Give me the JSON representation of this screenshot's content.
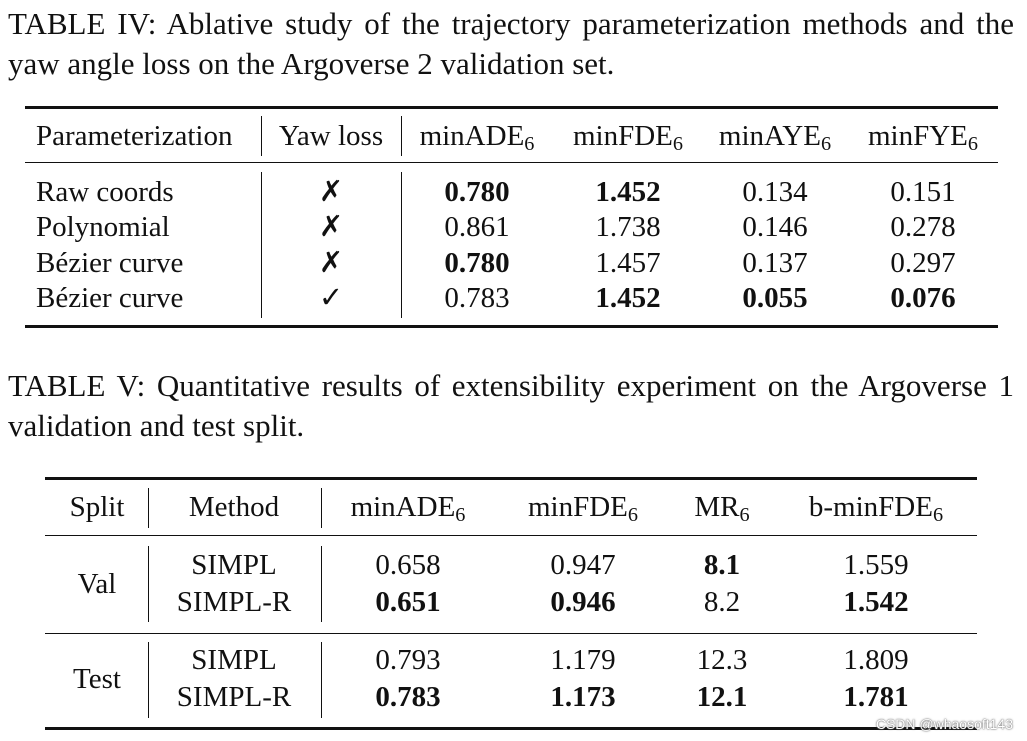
{
  "table4": {
    "caption": "TABLE IV: Ablative study of the trajectory parameterization methods and the yaw angle loss on the Argoverse 2 validation set.",
    "headers": {
      "param": "Parameterization",
      "yaw": "Yaw loss",
      "minade": "minADE",
      "minfde": "minFDE",
      "minaye": "minAYE",
      "minfye": "minFYE",
      "k": "6"
    },
    "rows": [
      {
        "param": "Raw coords",
        "yaw": "✗",
        "minade": "0.780",
        "minfde": "1.452",
        "minaye": "0.134",
        "minfye": "0.151"
      },
      {
        "param": "Polynomial",
        "yaw": "✗",
        "minade": "0.861",
        "minfde": "1.738",
        "minaye": "0.146",
        "minfye": "0.278"
      },
      {
        "param": "Bézier curve",
        "yaw": "✗",
        "minade": "0.780",
        "minfde": "1.457",
        "minaye": "0.137",
        "minfye": "0.297"
      },
      {
        "param": "Bézier curve",
        "yaw": "✓",
        "minade": "0.783",
        "minfde": "1.452",
        "minaye": "0.055",
        "minfye": "0.076"
      }
    ]
  },
  "table5": {
    "caption": "TABLE V: Quantitative results of extensibility experiment on the Argoverse 1 validation and test split.",
    "headers": {
      "split": "Split",
      "method": "Method",
      "minade": "minADE",
      "minfde": "minFDE",
      "mr": "MR",
      "bminfde": "b-minFDE",
      "k": "6"
    },
    "groups": [
      {
        "split": "Val",
        "rows": [
          {
            "method": "SIMPL",
            "minade": "0.658",
            "minfde": "0.947",
            "mr": "8.1",
            "bminfde": "1.559"
          },
          {
            "method": "SIMPL-R",
            "minade": "0.651",
            "minfde": "0.946",
            "mr": "8.2",
            "bminfde": "1.542"
          }
        ]
      },
      {
        "split": "Test",
        "rows": [
          {
            "method": "SIMPL",
            "minade": "0.793",
            "minfde": "1.179",
            "mr": "12.3",
            "bminfde": "1.809"
          },
          {
            "method": "SIMPL-R",
            "minade": "0.783",
            "minfde": "1.173",
            "mr": "12.1",
            "bminfde": "1.781"
          }
        ]
      }
    ]
  },
  "watermark": "CSDN @whaosoft143"
}
